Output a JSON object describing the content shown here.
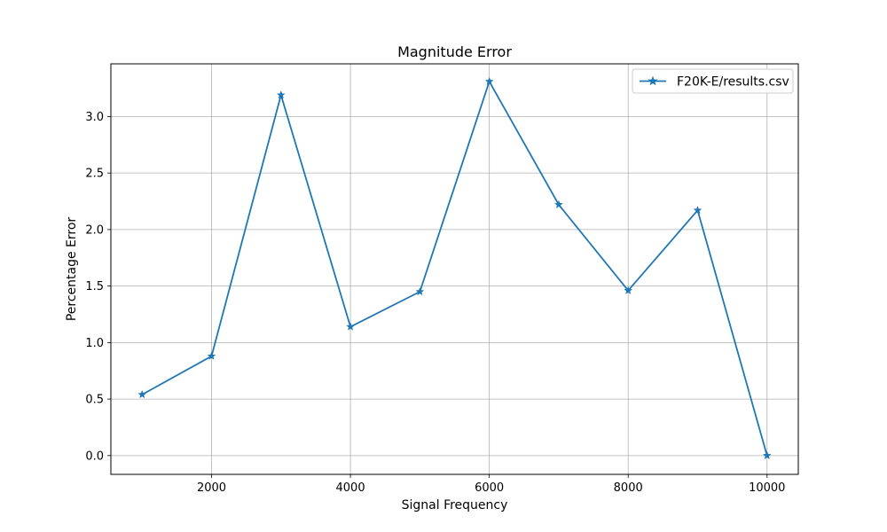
{
  "chart_data": {
    "type": "line",
    "title": "Magnitude Error",
    "xlabel": "Signal Frequency",
    "ylabel": "Percentage Error",
    "xlim": [
      550,
      10450
    ],
    "ylim": [
      -0.166,
      3.466
    ],
    "xticks": [
      2000,
      4000,
      6000,
      8000,
      10000
    ],
    "xtick_labels": [
      "2000",
      "4000",
      "6000",
      "8000",
      "10000"
    ],
    "yticks": [
      0.0,
      0.5,
      1.0,
      1.5,
      2.0,
      2.5,
      3.0
    ],
    "ytick_labels": [
      "0.0",
      "0.5",
      "1.0",
      "1.5",
      "2.0",
      "2.5",
      "3.0"
    ],
    "grid": true,
    "legend_position": "top-right",
    "series": [
      {
        "name": "F20K-E/results.csv",
        "color": "#1f77b4",
        "marker": "star",
        "x": [
          1000,
          2000,
          3000,
          4000,
          5000,
          6000,
          7000,
          8000,
          9000,
          10000
        ],
        "y": [
          0.54,
          0.88,
          3.19,
          1.14,
          1.45,
          3.31,
          2.22,
          1.46,
          2.17,
          0.0
        ]
      }
    ]
  }
}
